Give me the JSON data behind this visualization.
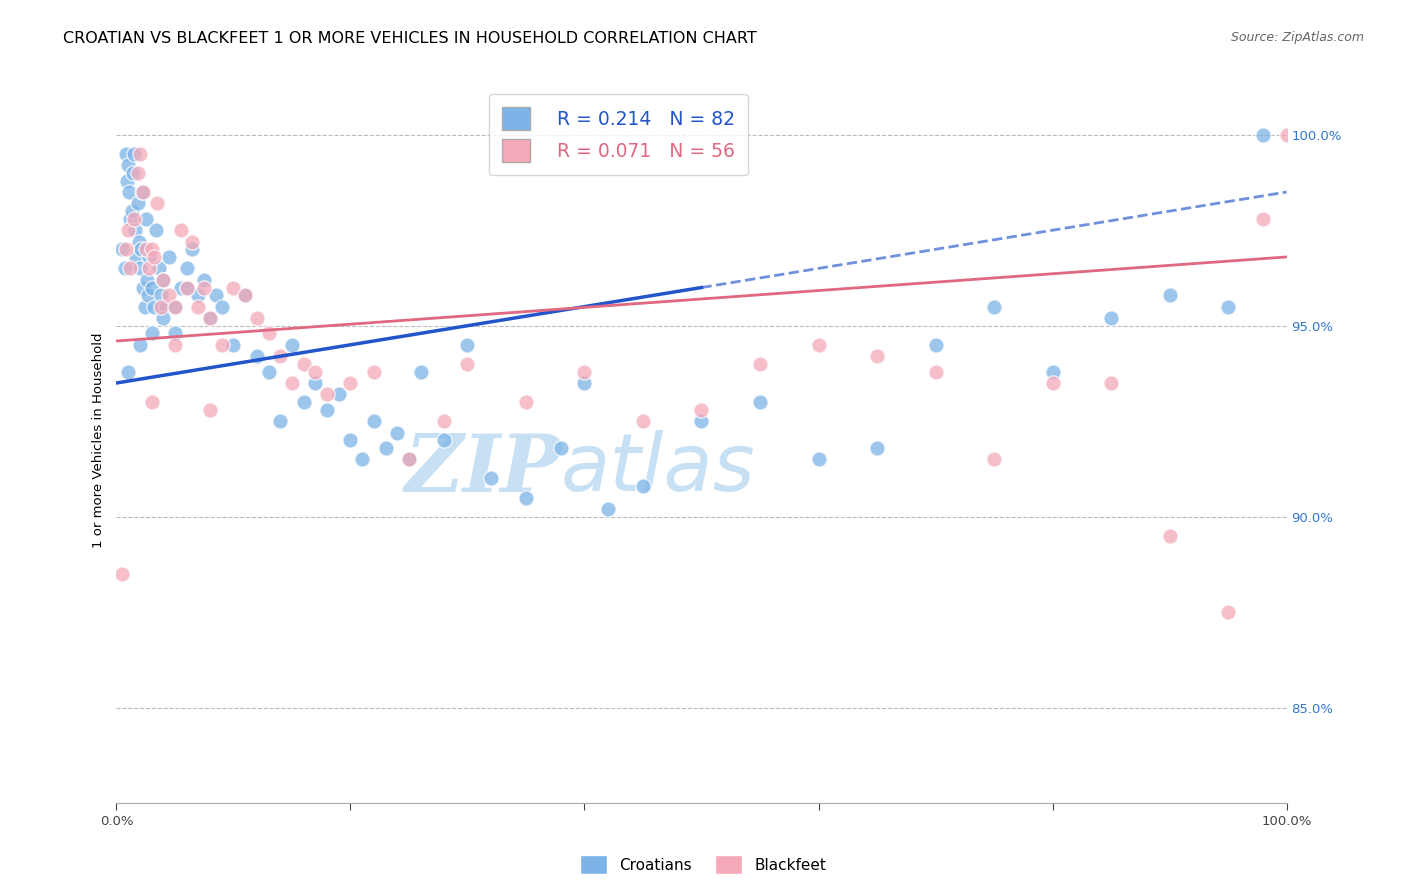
{
  "title": "CROATIAN VS BLACKFEET 1 OR MORE VEHICLES IN HOUSEHOLD CORRELATION CHART",
  "source": "Source: ZipAtlas.com",
  "ylabel": "1 or more Vehicles in Household",
  "ytick_values": [
    85.0,
    90.0,
    95.0,
    100.0
  ],
  "xlim": [
    0.0,
    100.0
  ],
  "ylim": [
    82.5,
    101.5
  ],
  "legend_croatians_r": "R = 0.214",
  "legend_croatians_n": "N = 82",
  "legend_blackfeet_r": "R = 0.071",
  "legend_blackfeet_n": "N = 56",
  "color_croatians": "#7cb4e8",
  "color_blackfeet": "#f4a8b8",
  "color_trendline_croatians": "#2255cc",
  "color_trendline_blackfeet": "#e06880",
  "watermark_zip": "ZIP",
  "watermark_atlas": "atlas",
  "watermark_color": "#c8e0f4",
  "cro_trendline_x0": 0.0,
  "cro_trendline_y0": 93.5,
  "cro_trendline_x1": 100.0,
  "cro_trendline_y1": 98.5,
  "cro_solid_x_end": 50.0,
  "blk_trendline_x0": 0.0,
  "blk_trendline_y0": 94.6,
  "blk_trendline_x1": 100.0,
  "blk_trendline_y1": 96.8,
  "croatians_x": [
    0.5,
    0.7,
    0.8,
    0.9,
    1.0,
    1.1,
    1.2,
    1.3,
    1.4,
    1.5,
    1.6,
    1.7,
    1.8,
    1.9,
    2.0,
    2.1,
    2.2,
    2.3,
    2.4,
    2.5,
    2.6,
    2.7,
    2.8,
    3.0,
    3.2,
    3.4,
    3.6,
    3.8,
    4.0,
    4.2,
    4.5,
    5.0,
    5.5,
    6.0,
    6.5,
    7.0,
    7.5,
    8.0,
    8.5,
    9.0,
    10.0,
    11.0,
    12.0,
    13.0,
    14.0,
    15.0,
    16.0,
    17.0,
    18.0,
    19.0,
    20.0,
    21.0,
    22.0,
    23.0,
    24.0,
    25.0,
    26.0,
    28.0,
    30.0,
    32.0,
    35.0,
    38.0,
    40.0,
    42.0,
    45.0,
    50.0,
    55.0,
    60.0,
    65.0,
    70.0,
    75.0,
    80.0,
    85.0,
    90.0,
    95.0,
    98.0,
    1.0,
    2.0,
    3.0,
    4.0,
    5.0,
    6.0
  ],
  "croatians_y": [
    97.0,
    96.5,
    99.5,
    98.8,
    99.2,
    98.5,
    97.8,
    98.0,
    99.0,
    99.5,
    97.5,
    96.8,
    98.2,
    97.2,
    96.5,
    97.0,
    98.5,
    96.0,
    95.5,
    97.8,
    96.2,
    95.8,
    96.8,
    96.0,
    95.5,
    97.5,
    96.5,
    95.8,
    96.2,
    95.5,
    96.8,
    95.5,
    96.0,
    96.5,
    97.0,
    95.8,
    96.2,
    95.2,
    95.8,
    95.5,
    94.5,
    95.8,
    94.2,
    93.8,
    92.5,
    94.5,
    93.0,
    93.5,
    92.8,
    93.2,
    92.0,
    91.5,
    92.5,
    91.8,
    92.2,
    91.5,
    93.8,
    92.0,
    94.5,
    91.0,
    90.5,
    91.8,
    93.5,
    90.2,
    90.8,
    92.5,
    93.0,
    91.5,
    91.8,
    94.5,
    95.5,
    93.8,
    95.2,
    95.8,
    95.5,
    100.0,
    93.8,
    94.5,
    94.8,
    95.2,
    94.8,
    96.0
  ],
  "blackfeet_x": [
    0.5,
    0.8,
    1.0,
    1.2,
    1.5,
    1.8,
    2.0,
    2.3,
    2.5,
    2.8,
    3.0,
    3.2,
    3.5,
    3.8,
    4.0,
    4.5,
    5.0,
    5.5,
    6.0,
    6.5,
    7.0,
    7.5,
    8.0,
    9.0,
    10.0,
    11.0,
    12.0,
    13.0,
    14.0,
    15.0,
    16.0,
    17.0,
    18.0,
    20.0,
    22.0,
    25.0,
    28.0,
    30.0,
    35.0,
    40.0,
    45.0,
    50.0,
    55.0,
    60.0,
    65.0,
    70.0,
    75.0,
    80.0,
    85.0,
    90.0,
    95.0,
    98.0,
    100.0,
    3.0,
    5.0,
    8.0
  ],
  "blackfeet_y": [
    88.5,
    97.0,
    97.5,
    96.5,
    97.8,
    99.0,
    99.5,
    98.5,
    97.0,
    96.5,
    97.0,
    96.8,
    98.2,
    95.5,
    96.2,
    95.8,
    95.5,
    97.5,
    96.0,
    97.2,
    95.5,
    96.0,
    95.2,
    94.5,
    96.0,
    95.8,
    95.2,
    94.8,
    94.2,
    93.5,
    94.0,
    93.8,
    93.2,
    93.5,
    93.8,
    91.5,
    92.5,
    94.0,
    93.0,
    93.8,
    92.5,
    92.8,
    94.0,
    94.5,
    94.2,
    93.8,
    91.5,
    93.5,
    93.5,
    89.5,
    87.5,
    97.8,
    100.0,
    93.0,
    94.5,
    92.8
  ]
}
